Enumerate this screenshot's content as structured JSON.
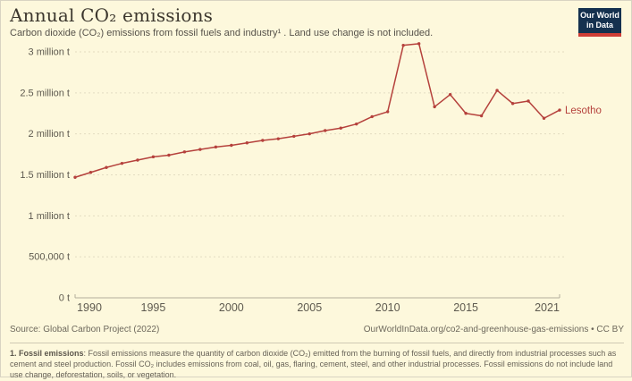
{
  "header": {
    "title": "Annual CO₂ emissions",
    "subtitle": "Carbon dioxide (CO₂) emissions from fossil fuels and industry¹ . Land use change is not included.",
    "logo": {
      "line1": "Our World",
      "line2": "in Data",
      "bg_color": "#15314f",
      "accent_color": "#cf3e36"
    }
  },
  "chart_data": {
    "type": "line",
    "title": "Annual CO₂ emissions",
    "xlabel": "",
    "ylabel": "tonnes",
    "xlim": [
      1990,
      2021
    ],
    "ylim": [
      0,
      3000000
    ],
    "grid": true,
    "legend_position": "end-of-line",
    "xticks": [
      "1990",
      "1995",
      "2000",
      "2005",
      "2010",
      "2015",
      "2021"
    ],
    "yticks": [
      {
        "value": 0,
        "label": "0 t"
      },
      {
        "value": 500000,
        "label": "500,000 t"
      },
      {
        "value": 1000000,
        "label": "1 million t"
      },
      {
        "value": 1500000,
        "label": "1.5 million t"
      },
      {
        "value": 2000000,
        "label": "2 million t"
      },
      {
        "value": 2500000,
        "label": "2.5 million t"
      },
      {
        "value": 3000000,
        "label": "3 million t"
      }
    ],
    "x": [
      1990,
      1991,
      1992,
      1993,
      1994,
      1995,
      1996,
      1997,
      1998,
      1999,
      2000,
      2001,
      2002,
      2003,
      2004,
      2005,
      2006,
      2007,
      2008,
      2009,
      2010,
      2011,
      2012,
      2013,
      2014,
      2015,
      2016,
      2017,
      2018,
      2019,
      2020,
      2021
    ],
    "series": [
      {
        "name": "Lesotho",
        "color": "#b5413c",
        "values": [
          1470000,
          1530000,
          1590000,
          1640000,
          1680000,
          1720000,
          1740000,
          1780000,
          1810000,
          1840000,
          1860000,
          1890000,
          1920000,
          1940000,
          1970000,
          2000000,
          2040000,
          2070000,
          2120000,
          2210000,
          2270000,
          3080000,
          3100000,
          2330000,
          2480000,
          2250000,
          2220000,
          2530000,
          2370000,
          2400000,
          2190000,
          2290000
        ]
      }
    ]
  },
  "footer": {
    "source_label": "Source: Global Carbon Project (2022)",
    "link_label": "OurWorldInData.org/co2-and-greenhouse-gas-emissions • CC BY",
    "note_lead": "1. Fossil emissions",
    "note_rest": ": Fossil emissions measure the quantity of carbon dioxide (CO₂) emitted from the burning of fossil fuels, and directly from industrial processes such as cement and steel production. Fossil CO₂ includes emissions from coal, oil, gas, flaring, cement, steel, and other industrial processes. Fossil emissions do not include land use change, deforestation, soils, or vegetation."
  },
  "colors": {
    "background": "#fdf8dc",
    "series_red": "#b5413c",
    "grid": "#e2dcc1",
    "axis": "#b4ae9b",
    "tick_text": "#5e5a4f",
    "title_text": "#3c372e"
  }
}
